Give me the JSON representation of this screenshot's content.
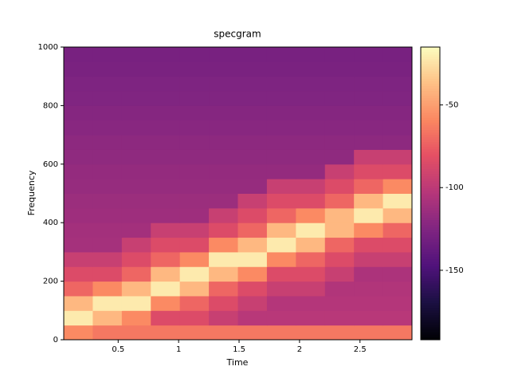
{
  "chart_data": {
    "type": "heatmap",
    "title": "specgram",
    "xlabel": "Time",
    "ylabel": "Frequency",
    "colormap": "magma",
    "x": [
      0.17,
      0.41,
      0.65,
      0.89,
      1.13,
      1.37,
      1.61,
      1.85,
      2.09,
      2.33,
      2.57,
      2.81
    ],
    "y": [
      25,
      75,
      125,
      175,
      225,
      275,
      325,
      375,
      425,
      475,
      525,
      575,
      625,
      675,
      725,
      775,
      825,
      875,
      925,
      975
    ],
    "values": [
      [
        -58,
        -65,
        -65,
        -65,
        -65,
        -65,
        -65,
        -65,
        -65,
        -65,
        -65,
        -65
      ],
      [
        -22,
        -40,
        -58,
        -85,
        -85,
        -95,
        -102,
        -102,
        -102,
        -102,
        -102,
        -102
      ],
      [
        -40,
        -22,
        -22,
        -58,
        -72,
        -85,
        -95,
        -104,
        -104,
        -104,
        -104,
        -104
      ],
      [
        -72,
        -58,
        -40,
        -22,
        -40,
        -72,
        -85,
        -95,
        -95,
        -105,
        -105,
        -105
      ],
      [
        -85,
        -85,
        -72,
        -40,
        -22,
        -40,
        -58,
        -85,
        -85,
        -95,
        -107,
        -107
      ],
      [
        -95,
        -95,
        -85,
        -72,
        -58,
        -22,
        -22,
        -58,
        -72,
        -85,
        -95,
        -95
      ],
      [
        -110,
        -110,
        -95,
        -85,
        -85,
        -58,
        -40,
        -22,
        -40,
        -72,
        -85,
        -85
      ],
      [
        -111,
        -111,
        -111,
        -95,
        -95,
        -85,
        -72,
        -40,
        -22,
        -40,
        -58,
        -72
      ],
      [
        -113,
        -113,
        -113,
        -113,
        -113,
        -95,
        -85,
        -72,
        -58,
        -40,
        -22,
        -40
      ],
      [
        -114,
        -114,
        -114,
        -114,
        -114,
        -114,
        -95,
        -85,
        -85,
        -72,
        -40,
        -22
      ],
      [
        -116,
        -116,
        -116,
        -116,
        -116,
        -116,
        -116,
        -95,
        -95,
        -85,
        -72,
        -58
      ],
      [
        -117,
        -117,
        -117,
        -117,
        -117,
        -117,
        -117,
        -117,
        -117,
        -95,
        -85,
        -85
      ],
      [
        -119,
        -119,
        -119,
        -119,
        -119,
        -119,
        -119,
        -119,
        -119,
        -119,
        -95,
        -95
      ],
      [
        -120,
        -120,
        -120,
        -120,
        -120,
        -120,
        -120,
        -120,
        -120,
        -120,
        -120,
        -120
      ],
      [
        -122,
        -122,
        -122,
        -122,
        -122,
        -122,
        -122,
        -122,
        -122,
        -122,
        -122,
        -122
      ],
      [
        -123,
        -123,
        -123,
        -123,
        -123,
        -123,
        -123,
        -123,
        -123,
        -123,
        -123,
        -123
      ],
      [
        -125,
        -125,
        -125,
        -125,
        -125,
        -125,
        -125,
        -125,
        -125,
        -125,
        -125,
        -125
      ],
      [
        -126,
        -126,
        -126,
        -126,
        -126,
        -126,
        -126,
        -126,
        -126,
        -126,
        -126,
        -126
      ],
      [
        -128,
        -128,
        -128,
        -128,
        -128,
        -128,
        -128,
        -128,
        -128,
        -128,
        -128,
        -128
      ],
      [
        -129,
        -129,
        -129,
        -129,
        -129,
        -129,
        -129,
        -129,
        -129,
        -129,
        -129,
        -129
      ]
    ],
    "xlim": [
      0.05,
      2.93
    ],
    "ylim": [
      0,
      1000
    ],
    "clim": [
      -192,
      -15
    ],
    "xticks": [
      0.5,
      1,
      1.5,
      2,
      2.5
    ],
    "yticks": [
      0,
      200,
      400,
      600,
      800,
      1000
    ],
    "cticks": [
      -50,
      -100,
      -150
    ]
  }
}
